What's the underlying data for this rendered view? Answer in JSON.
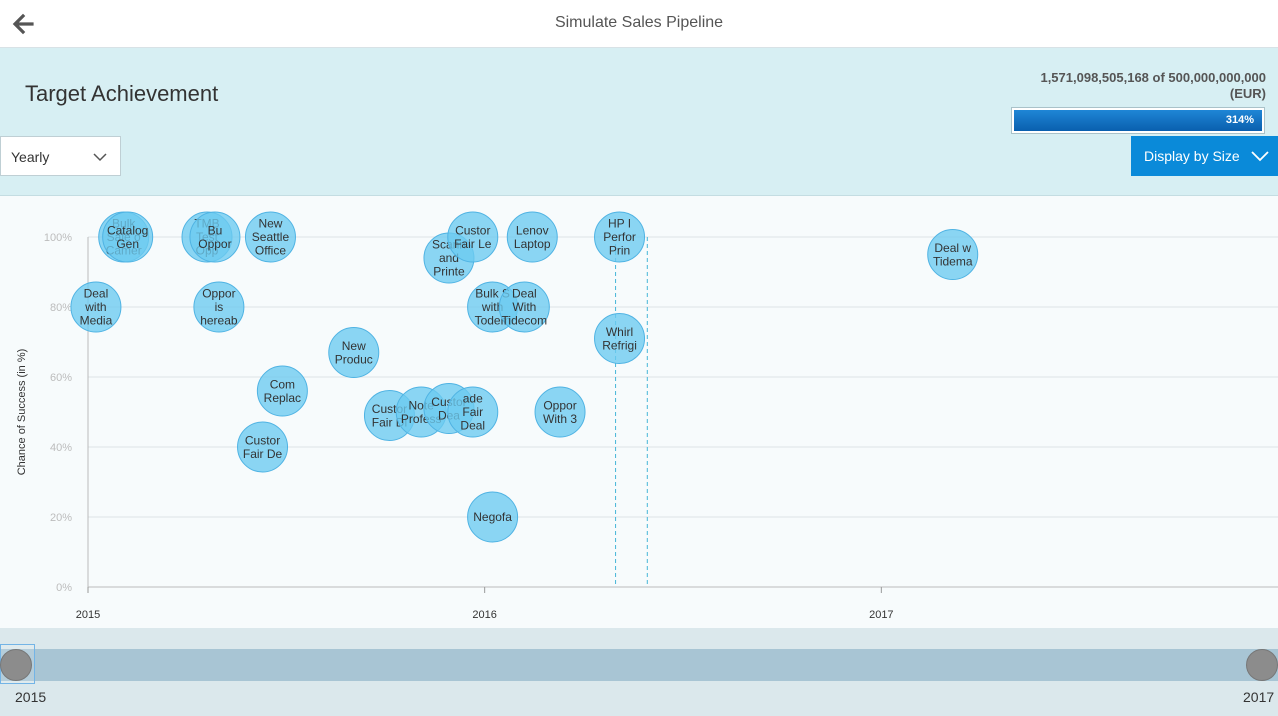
{
  "header": {
    "title": "Simulate Sales Pipeline",
    "back_icon": "arrow-left-icon"
  },
  "panel": {
    "title": "Target Achievement",
    "amount": "1,571,098,505,168 of 500,000,000,000",
    "currency": "(EUR)",
    "progress_label": "314%",
    "progress_fraction": 1.0,
    "period_select": {
      "value": "Yearly"
    },
    "display_button": {
      "label": "Display by Size"
    }
  },
  "range": {
    "start_label": "2015",
    "end_label": "2017"
  },
  "colors": {
    "bubble_fill": "#6ccaf0",
    "bubble_stroke": "#4fb3e3",
    "accent": "#0a8ad9",
    "marker": "#46b6d8"
  },
  "chart_data": {
    "type": "scatter",
    "ylabel": "Chance of Success (in %)",
    "ylim": [
      0,
      100
    ],
    "y_ticks": [
      "0%",
      "20%",
      "40%",
      "60%",
      "80%",
      "100%"
    ],
    "x_ticks": [
      "2015",
      "2016",
      "2017"
    ],
    "xlim": [
      2015.0,
      2018.0
    ],
    "markers_x": [
      2016.33,
      2016.41
    ],
    "points": [
      {
        "x": 2015.02,
        "y": 80,
        "label": [
          "Deal",
          "with",
          "Media"
        ]
      },
      {
        "x": 2015.09,
        "y": 100,
        "label": [
          "Bulk",
          "Sale o",
          "Camer"
        ]
      },
      {
        "x": 2015.1,
        "y": 100,
        "label": [
          "Catalog",
          "Gen"
        ]
      },
      {
        "x": 2015.3,
        "y": 100,
        "label": [
          "TMB",
          "Test",
          "Opp"
        ]
      },
      {
        "x": 2015.32,
        "y": 100,
        "label": [
          "Bu",
          "Oppor"
        ]
      },
      {
        "x": 2015.33,
        "y": 80,
        "label": [
          "Oppor",
          "is",
          "hereab"
        ]
      },
      {
        "x": 2015.46,
        "y": 100,
        "label": [
          "New",
          "Seattle",
          "Office"
        ]
      },
      {
        "x": 2015.49,
        "y": 56,
        "label": [
          "Com",
          "Replac"
        ]
      },
      {
        "x": 2015.44,
        "y": 40,
        "label": [
          "Custor",
          "Fair De"
        ]
      },
      {
        "x": 2015.67,
        "y": 67,
        "label": [
          "New",
          "Produc"
        ]
      },
      {
        "x": 2015.76,
        "y": 49,
        "label": [
          "Custor",
          "Fair Di"
        ]
      },
      {
        "x": 2015.84,
        "y": 50,
        "label": [
          "Note",
          "Profess"
        ]
      },
      {
        "x": 2015.91,
        "y": 51,
        "label": [
          "Custor",
          "Dea"
        ]
      },
      {
        "x": 2015.97,
        "y": 50,
        "label": [
          "ade",
          "Fair",
          "Deal"
        ]
      },
      {
        "x": 2015.91,
        "y": 94,
        "label": [
          "Scann",
          "and",
          "Printe"
        ]
      },
      {
        "x": 2015.97,
        "y": 100,
        "label": [
          "Custor",
          "Fair Le"
        ]
      },
      {
        "x": 2016.02,
        "y": 20,
        "label": [
          "Negofa"
        ]
      },
      {
        "x": 2016.02,
        "y": 80,
        "label": [
          "Bulk S",
          "with",
          "Todem"
        ]
      },
      {
        "x": 2016.1,
        "y": 80,
        "label": [
          "Deal",
          "With",
          "Tidecom"
        ]
      },
      {
        "x": 2016.12,
        "y": 100,
        "label": [
          "Lenov",
          "Laptop"
        ]
      },
      {
        "x": 2016.19,
        "y": 50,
        "label": [
          "Oppor",
          "With 3"
        ]
      },
      {
        "x": 2016.34,
        "y": 100,
        "label": [
          "HP I",
          "Perfor",
          "Prin"
        ]
      },
      {
        "x": 2016.34,
        "y": 71,
        "label": [
          "Whirl",
          "Refrigi"
        ]
      },
      {
        "x": 2017.18,
        "y": 95,
        "label": [
          "Deal w",
          "Tidema"
        ]
      }
    ]
  }
}
